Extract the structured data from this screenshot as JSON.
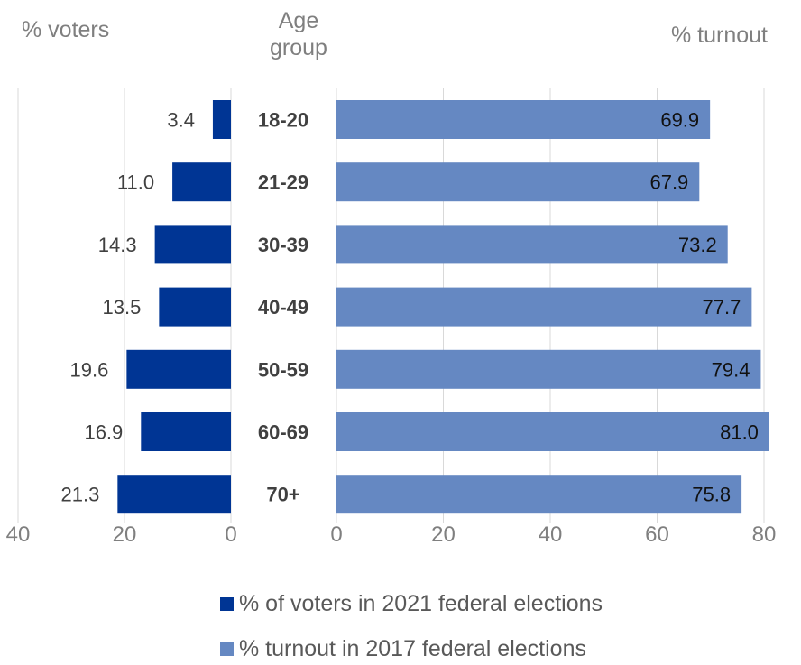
{
  "headers": {
    "left": "% voters",
    "center_line1": "Age",
    "center_line2": "group",
    "right": "% turnout"
  },
  "colors": {
    "voters": "#003594",
    "turnout": "#6588c2",
    "grid": "#d9d9d9",
    "axis_text": "#7f7f7f",
    "label_text": "#404040"
  },
  "chart_data": [
    {
      "type": "bar",
      "orientation": "horizontal",
      "direction": "right-to-left",
      "categories": [
        "18-20",
        "21-29",
        "30-39",
        "40-49",
        "50-59",
        "60-69",
        "70+"
      ],
      "series": [
        {
          "name": "% of voters in 2021 federal elections",
          "values": [
            3.4,
            11.0,
            14.3,
            13.5,
            19.6,
            16.9,
            21.3
          ]
        }
      ],
      "xlim": [
        0,
        40
      ],
      "xticks": [
        "40",
        "20",
        "0"
      ],
      "grid": true
    },
    {
      "type": "bar",
      "orientation": "horizontal",
      "categories": [
        "18-20",
        "21-29",
        "30-39",
        "40-49",
        "50-59",
        "60-69",
        "70+"
      ],
      "series": [
        {
          "name": "% turnout in 2017 federal elections",
          "values": [
            69.9,
            67.9,
            73.2,
            77.7,
            79.4,
            81.0,
            75.8
          ]
        }
      ],
      "xlim": [
        0,
        80
      ],
      "xticks": [
        "0",
        "20",
        "40",
        "60",
        "80"
      ],
      "grid": true
    }
  ],
  "legend": [
    {
      "label": "% of voters in 2021 federal elections",
      "color": "#003594"
    },
    {
      "label": "% turnout in 2017 federal elections",
      "color": "#6588c2"
    }
  ]
}
